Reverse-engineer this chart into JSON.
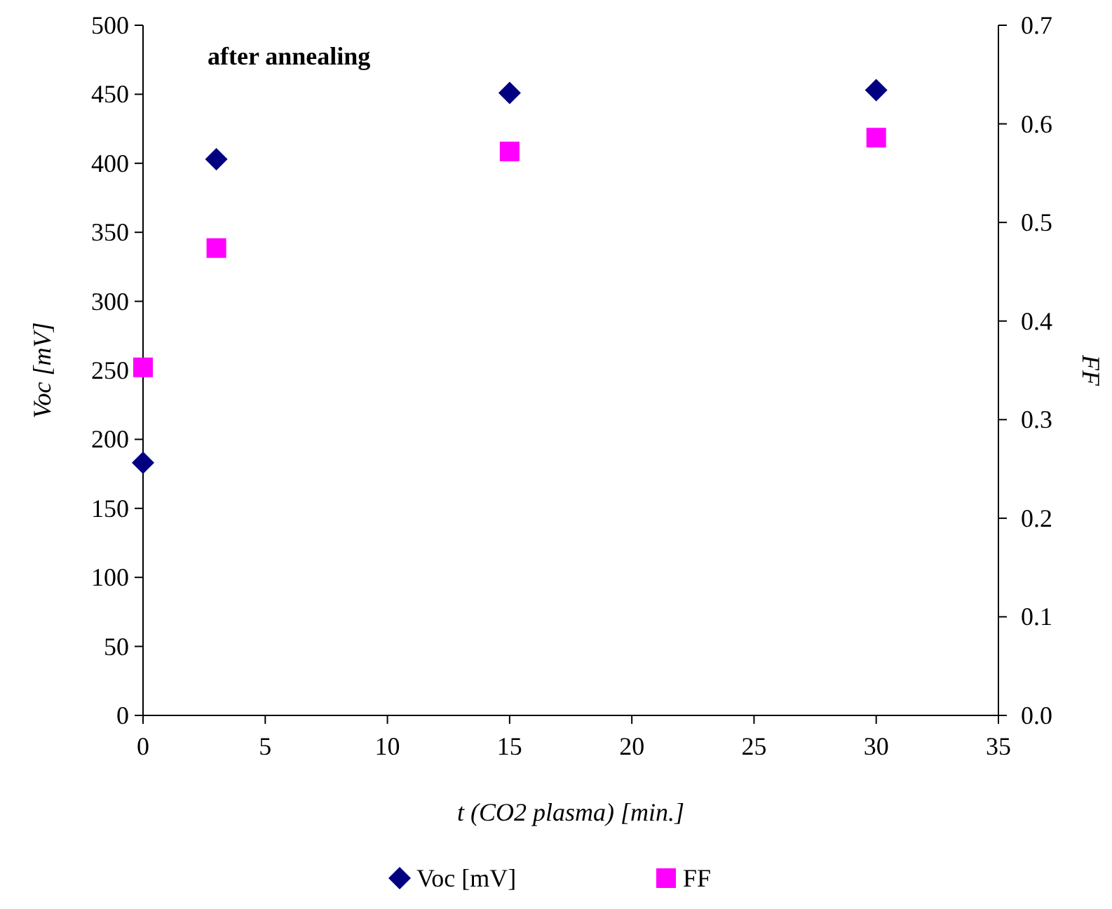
{
  "chart_data": {
    "type": "scatter",
    "xlabel": "t (CO2 plasma) [min.]",
    "ylabel": "Voc [mV]",
    "y2label": "FF",
    "annotations": [
      "after annealing"
    ],
    "x": [
      0,
      3,
      15,
      30
    ],
    "xlim": [
      0,
      35
    ],
    "xticks": [
      0,
      5,
      10,
      15,
      20,
      25,
      30,
      35
    ],
    "ylim": [
      0,
      500
    ],
    "yticks": [
      0,
      50,
      100,
      150,
      200,
      250,
      300,
      350,
      400,
      450,
      500
    ],
    "y2lim": [
      0,
      0.7
    ],
    "y2ticks": [
      {
        "value": 0,
        "label": "0.0"
      },
      {
        "value": 0.1,
        "label": "0.1"
      },
      {
        "value": 0.2,
        "label": "0.2"
      },
      {
        "value": 0.3,
        "label": "0.3"
      },
      {
        "value": 0.4,
        "label": "0.4"
      },
      {
        "value": 0.5,
        "label": "0.5"
      },
      {
        "value": 0.6,
        "label": "0.6"
      },
      {
        "value": 0.7,
        "label": "0.7"
      }
    ],
    "series": [
      {
        "name": "Voc [mV]",
        "color": "#000080",
        "marker": "diamond",
        "values": [
          183,
          403,
          451,
          453
        ]
      },
      {
        "name": "FF",
        "color": "#ff00ff",
        "marker": "square",
        "axis": "y2",
        "values": [
          0.353,
          0.474,
          0.572,
          0.586
        ]
      }
    ],
    "grid": false,
    "legend": "bottom"
  }
}
